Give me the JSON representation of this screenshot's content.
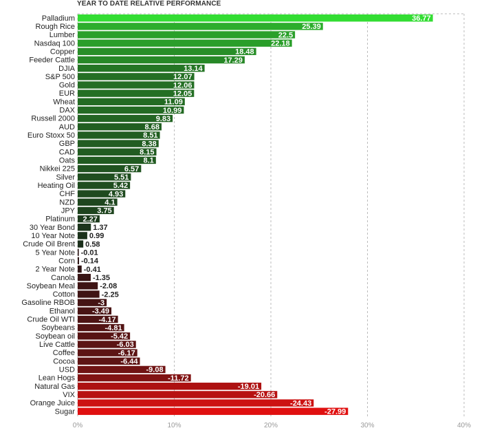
{
  "chart_data": {
    "type": "bar",
    "orientation": "horizontal",
    "title": "YEAR TO DATE RELATIVE PERFORMANCE",
    "xlabel": "",
    "ylabel": "",
    "categories": [
      "Palladium",
      "Rough Rice",
      "Lumber",
      "Nasdaq 100",
      "Copper",
      "Feeder Cattle",
      "DJIA",
      "S&P 500",
      "Gold",
      "EUR",
      "Wheat",
      "DAX",
      "Russell 2000",
      "AUD",
      "Euro Stoxx 50",
      "GBP",
      "CAD",
      "Oats",
      "Nikkei 225",
      "Silver",
      "Heating Oil",
      "CHF",
      "NZD",
      "JPY",
      "Platinum",
      "30 Year Bond",
      "10 Year Note",
      "Crude Oil Brent",
      "5 Year Note",
      "Corn",
      "2 Year Note",
      "Canola",
      "Soybean Meal",
      "Cotton",
      "Gasoline RBOB",
      "Ethanol",
      "Crude Oil WTI",
      "Soybeans",
      "Soybean oil",
      "Live Cattle",
      "Coffee",
      "Cocoa",
      "USD",
      "Lean Hogs",
      "Natural Gas",
      "VIX",
      "Orange Juice",
      "Sugar"
    ],
    "values": [
      36.77,
      25.39,
      22.5,
      22.18,
      18.48,
      17.29,
      13.14,
      12.07,
      12.06,
      12.05,
      11.09,
      10.99,
      9.83,
      8.68,
      8.51,
      8.38,
      8.15,
      8.1,
      6.57,
      5.51,
      5.42,
      4.93,
      4.1,
      3.75,
      2.27,
      1.37,
      0.99,
      0.58,
      -0.01,
      -0.14,
      -0.41,
      -1.35,
      -2.08,
      -2.25,
      -3,
      -3.49,
      -4.17,
      -4.81,
      -5.42,
      -6.03,
      -6.17,
      -6.44,
      -9.08,
      -11.72,
      -19.01,
      -20.66,
      -24.43,
      -27.99
    ],
    "value_labels": [
      "36.77",
      "25.39",
      "22.5",
      "22.18",
      "18.48",
      "17.29",
      "13.14",
      "12.07",
      "12.06",
      "12.05",
      "11.09",
      "10.99",
      "9.83",
      "8.68",
      "8.51",
      "8.38",
      "8.15",
      "8.1",
      "6.57",
      "5.51",
      "5.42",
      "4.93",
      "4.1",
      "3.75",
      "2.27",
      "1.37",
      "0.99",
      "0.58",
      "-0.01",
      "-0.14",
      "-0.41",
      "-1.35",
      "-2.08",
      "-2.25",
      "-3",
      "-3.49",
      "-4.17",
      "-4.81",
      "-5.42",
      "-6.03",
      "-6.17",
      "-6.44",
      "-9.08",
      "-11.72",
      "-19.01",
      "-20.66",
      "-24.43",
      "-27.99"
    ],
    "bar_magnitude": "absolute value",
    "xlim": [
      0,
      40
    ],
    "xticks": [
      0,
      10,
      20,
      30,
      40
    ],
    "xtick_labels": [
      "0%",
      "10%",
      "20%",
      "30%",
      "40%"
    ],
    "grid": true,
    "legend": "none",
    "colors": {
      "positive_high": "#33dd33",
      "positive_low": "#1a2a1a",
      "negative_low": "#2a1515",
      "negative_high": "#e01010",
      "label_dark": "#222222",
      "label_light": "#ffffff"
    }
  }
}
